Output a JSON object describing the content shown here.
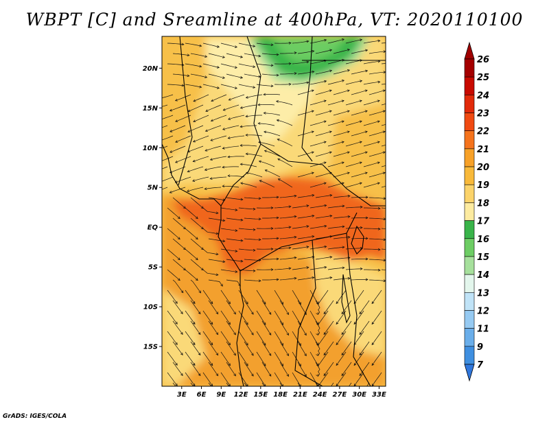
{
  "title": "WBPT [C] and Sreamline at 400hPa, VT: 2020110100",
  "credit": "GrADS: IGES/COLA",
  "map": {
    "lat_ticks": [
      {
        "value": 20,
        "label": "20N"
      },
      {
        "value": 15,
        "label": "15N"
      },
      {
        "value": 10,
        "label": "10N"
      },
      {
        "value": 5,
        "label": "5N"
      },
      {
        "value": 0,
        "label": "EQ"
      },
      {
        "value": -5,
        "label": "5S"
      },
      {
        "value": -10,
        "label": "10S"
      },
      {
        "value": -15,
        "label": "15S"
      }
    ],
    "lon_ticks": [
      {
        "value": 3,
        "label": "3E"
      },
      {
        "value": 6,
        "label": "6E"
      },
      {
        "value": 9,
        "label": "9E"
      },
      {
        "value": 12,
        "label": "12E"
      },
      {
        "value": 15,
        "label": "15E"
      },
      {
        "value": 18,
        "label": "18E"
      },
      {
        "value": 21,
        "label": "21E"
      },
      {
        "value": 24,
        "label": "24E"
      },
      {
        "value": 27,
        "label": "27E"
      },
      {
        "value": 30,
        "label": "30E"
      },
      {
        "value": 33,
        "label": "33E"
      }
    ],
    "lon_range": [
      0,
      34
    ],
    "lat_range": [
      -20,
      24
    ],
    "field_colors": {
      "orange_dark": "#f0661a",
      "orange": "#f3a02e",
      "orange_light": "#f7c048",
      "yellow": "#fad978",
      "yellow_pale": "#fdeda8",
      "green_dark": "#39b54a",
      "green": "#6ccd62",
      "green_light": "#a4e09a"
    }
  },
  "colorbar": {
    "levels": [
      {
        "label": "26",
        "color": "#a50000"
      },
      {
        "label": "25",
        "color": "#c80a00"
      },
      {
        "label": "24",
        "color": "#e22a0a"
      },
      {
        "label": "23",
        "color": "#f04a12"
      },
      {
        "label": "22",
        "color": "#f5731c"
      },
      {
        "label": "21",
        "color": "#f7a128"
      },
      {
        "label": "20",
        "color": "#f8b93a"
      },
      {
        "label": "19",
        "color": "#fbd36a"
      },
      {
        "label": "18",
        "color": "#fdeba0"
      },
      {
        "label": "17",
        "color": "#39b44a"
      },
      {
        "label": "16",
        "color": "#6dcd64"
      },
      {
        "label": "15",
        "color": "#a6e09c"
      },
      {
        "label": "14",
        "color": "#e3f6ec"
      },
      {
        "label": "13",
        "color": "#c0e3f7"
      },
      {
        "label": "12",
        "color": "#96caf2"
      },
      {
        "label": "11",
        "color": "#6aaeea"
      },
      {
        "label": "9",
        "color": "#3f8fe0"
      },
      {
        "label": "7",
        "color": "#206cd6"
      }
    ],
    "low_color": "#2f77dd",
    "high_color": "#a00000"
  }
}
